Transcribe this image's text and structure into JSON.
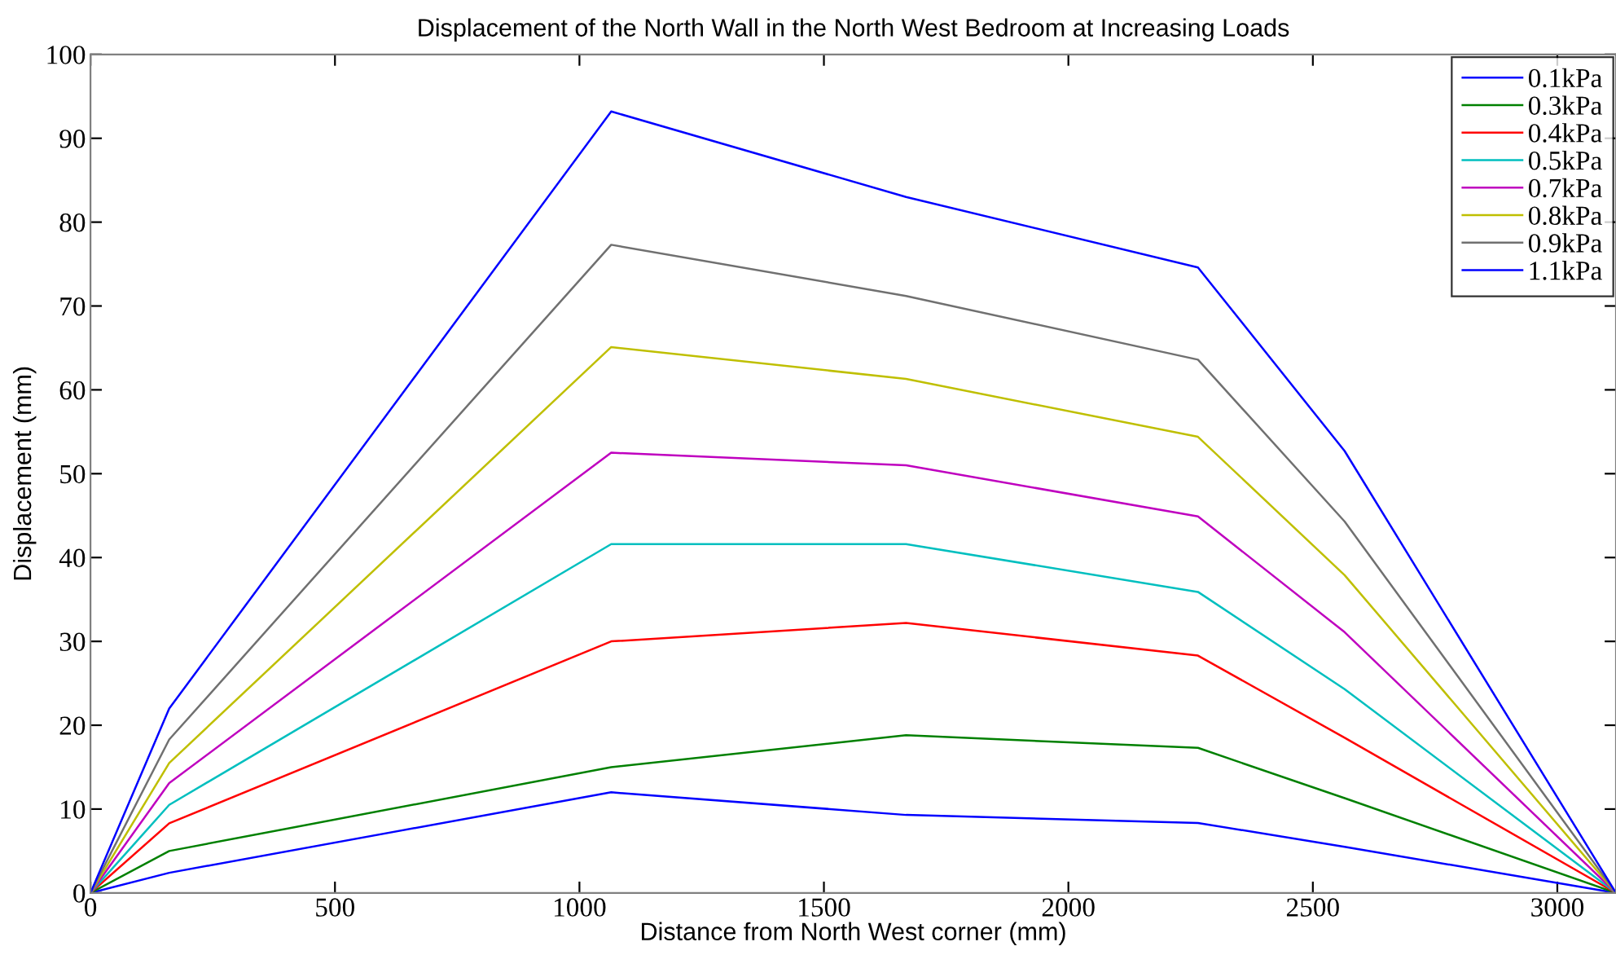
{
  "chart_data": {
    "type": "line",
    "title": "Displacement of the North Wall in the North West Bedroom at Increasing Loads",
    "xlabel": "Distance from North West corner (mm)",
    "ylabel": "Displacement (mm)",
    "x": [
      0,
      161,
      1065,
      1668,
      2265,
      2565,
      3120
    ],
    "series": [
      {
        "name": "0.1kPa",
        "color": "#0000ff",
        "values": [
          0,
          2.4,
          12.0,
          9.3,
          8.35,
          5.5,
          0
        ]
      },
      {
        "name": "0.3kPa",
        "color": "#008000",
        "values": [
          0,
          5.0,
          15.0,
          18.8,
          17.3,
          11.3,
          0
        ]
      },
      {
        "name": "0.4kPa",
        "color": "#ff0000",
        "values": [
          0,
          8.3,
          30.0,
          32.2,
          28.3,
          18.5,
          0
        ]
      },
      {
        "name": "0.5kPa",
        "color": "#00bfbf",
        "values": [
          0,
          10.5,
          41.6,
          41.6,
          35.9,
          24.3,
          0
        ]
      },
      {
        "name": "0.7kPa",
        "color": "#bf00bf",
        "values": [
          0,
          13.1,
          52.5,
          51.0,
          44.9,
          31.1,
          0
        ]
      },
      {
        "name": "0.8kPa",
        "color": "#bfbf00",
        "values": [
          0,
          15.5,
          65.1,
          61.3,
          54.4,
          37.9,
          0
        ]
      },
      {
        "name": "0.9kPa",
        "color": "#707070",
        "values": [
          0,
          18.3,
          77.3,
          71.2,
          63.6,
          44.3,
          0
        ]
      },
      {
        "name": "1.1kPa",
        "color": "#0000ff",
        "values": [
          0,
          22.0,
          93.2,
          83.0,
          74.6,
          52.7,
          0
        ]
      }
    ],
    "xlim": [
      0,
      3120
    ],
    "ylim": [
      0,
      100
    ],
    "xticks": [
      0,
      500,
      1000,
      1500,
      2000,
      2500,
      3000
    ],
    "yticks": [
      0,
      10,
      20,
      30,
      40,
      50,
      60,
      70,
      80,
      90,
      100
    ],
    "grid": false,
    "legend": "top right",
    "marker": "none",
    "line_style": "solid"
  }
}
